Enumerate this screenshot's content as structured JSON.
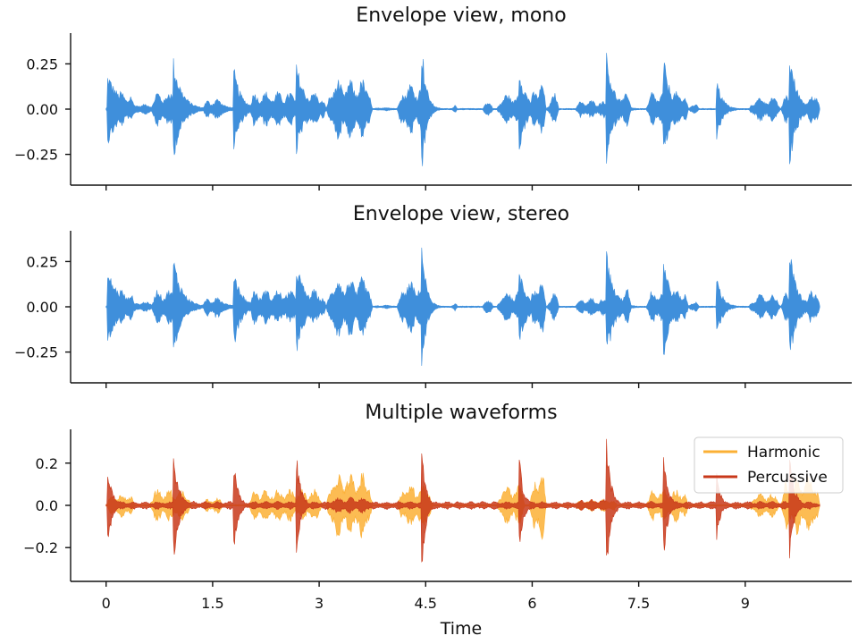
{
  "figure": {
    "xlabel": "Time",
    "x_tick_labels": [
      "0",
      "1.5",
      "3",
      "4.5",
      "6",
      "7.5",
      "9"
    ]
  },
  "chart_data": [
    {
      "type": "area",
      "title": "Envelope view, mono",
      "xlim": [
        -0.5,
        10.5
      ],
      "ylim": [
        -0.42,
        0.42
      ],
      "y_ticks": [
        0.25,
        0.0,
        -0.25
      ],
      "y_tick_labels": [
        "0.25",
        "0.00",
        "−0.25"
      ],
      "grid": false,
      "series": [
        {
          "color": "#3f8fdb",
          "events": [
            {
              "t": 0.03,
              "a": 0.2,
              "d": 0.18
            },
            {
              "t": 0.95,
              "a": 0.29,
              "d": 0.12
            },
            {
              "t": 1.55,
              "a": 0.06,
              "d": 0.12
            },
            {
              "t": 1.8,
              "a": 0.24,
              "d": 0.1
            },
            {
              "t": 2.68,
              "a": 0.27,
              "d": 0.12
            },
            {
              "t": 4.45,
              "a": 0.38,
              "d": 0.06
            },
            {
              "t": 5.82,
              "a": 0.24,
              "d": 0.1
            },
            {
              "t": 7.05,
              "a": 0.32,
              "d": 0.1
            },
            {
              "t": 7.85,
              "a": 0.3,
              "d": 0.1
            },
            {
              "t": 8.6,
              "a": 0.18,
              "d": 0.08
            },
            {
              "t": 9.63,
              "a": 0.32,
              "d": 0.1
            }
          ],
          "sections": [
            {
              "t0": 0.0,
              "t1": 0.4,
              "a": 0.1
            },
            {
              "t0": 0.4,
              "t1": 0.7,
              "a": 0.03
            },
            {
              "t0": 0.62,
              "t1": 1.2,
              "a": 0.1
            },
            {
              "t0": 1.35,
              "t1": 1.65,
              "a": 0.06
            },
            {
              "t0": 1.9,
              "t1": 2.1,
              "a": 0.04
            },
            {
              "t0": 2.0,
              "t1": 3.05,
              "a": 0.1
            },
            {
              "t0": 2.8,
              "t1": 3.1,
              "a": 0.08
            },
            {
              "t0": 3.1,
              "t1": 3.75,
              "a": 0.17
            },
            {
              "t0": 3.75,
              "t1": 4.1,
              "a": 0.01
            },
            {
              "t0": 4.1,
              "t1": 4.6,
              "a": 0.15
            },
            {
              "t0": 4.85,
              "t1": 4.95,
              "a": 0.05
            },
            {
              "t0": 5.3,
              "t1": 5.45,
              "a": 0.07
            },
            {
              "t0": 5.5,
              "t1": 5.9,
              "a": 0.09
            },
            {
              "t0": 5.96,
              "t1": 6.2,
              "a": 0.16
            },
            {
              "t0": 6.2,
              "t1": 6.38,
              "a": 0.09
            },
            {
              "t0": 6.6,
              "t1": 7.2,
              "a": 0.05
            },
            {
              "t0": 7.15,
              "t1": 7.4,
              "a": 0.1
            },
            {
              "t0": 7.6,
              "t1": 8.2,
              "a": 0.1
            },
            {
              "t0": 8.2,
              "t1": 8.35,
              "a": 0.05
            },
            {
              "t0": 9.05,
              "t1": 9.5,
              "a": 0.07
            },
            {
              "t0": 9.5,
              "t1": 9.8,
              "a": 0.1
            },
            {
              "t0": 9.85,
              "t1": 10.05,
              "a": 0.12
            }
          ]
        }
      ]
    },
    {
      "type": "area",
      "title": "Envelope view, stereo",
      "xlim": [
        -0.5,
        10.5
      ],
      "ylim": [
        -0.42,
        0.42
      ],
      "y_ticks": [
        0.25,
        0.0,
        -0.25
      ],
      "y_tick_labels": [
        "0.25",
        "0.00",
        "−0.25"
      ],
      "grid": false,
      "series": [
        {
          "color": "#3f8fdb",
          "events": [
            {
              "t": 0.03,
              "a": 0.2,
              "d": 0.18
            },
            {
              "t": 0.95,
              "a": 0.29,
              "d": 0.12
            },
            {
              "t": 1.55,
              "a": 0.06,
              "d": 0.12
            },
            {
              "t": 1.8,
              "a": 0.24,
              "d": 0.1
            },
            {
              "t": 2.68,
              "a": 0.27,
              "d": 0.12
            },
            {
              "t": 4.45,
              "a": 0.38,
              "d": 0.06
            },
            {
              "t": 5.82,
              "a": 0.24,
              "d": 0.1
            },
            {
              "t": 7.05,
              "a": 0.32,
              "d": 0.1
            },
            {
              "t": 7.85,
              "a": 0.3,
              "d": 0.1
            },
            {
              "t": 8.6,
              "a": 0.18,
              "d": 0.08
            },
            {
              "t": 9.63,
              "a": 0.32,
              "d": 0.1
            }
          ],
          "sections": [
            {
              "t0": 0.0,
              "t1": 0.4,
              "a": 0.1
            },
            {
              "t0": 0.4,
              "t1": 0.7,
              "a": 0.03
            },
            {
              "t0": 0.62,
              "t1": 1.2,
              "a": 0.1
            },
            {
              "t0": 1.35,
              "t1": 1.65,
              "a": 0.06
            },
            {
              "t0": 1.9,
              "t1": 2.1,
              "a": 0.04
            },
            {
              "t0": 2.0,
              "t1": 3.05,
              "a": 0.1
            },
            {
              "t0": 2.8,
              "t1": 3.1,
              "a": 0.08
            },
            {
              "t0": 3.1,
              "t1": 3.75,
              "a": 0.17
            },
            {
              "t0": 3.75,
              "t1": 4.1,
              "a": 0.01
            },
            {
              "t0": 4.1,
              "t1": 4.6,
              "a": 0.15
            },
            {
              "t0": 4.85,
              "t1": 4.95,
              "a": 0.05
            },
            {
              "t0": 5.3,
              "t1": 5.45,
              "a": 0.07
            },
            {
              "t0": 5.5,
              "t1": 5.9,
              "a": 0.09
            },
            {
              "t0": 5.96,
              "t1": 6.2,
              "a": 0.16
            },
            {
              "t0": 6.2,
              "t1": 6.38,
              "a": 0.09
            },
            {
              "t0": 6.6,
              "t1": 7.2,
              "a": 0.05
            },
            {
              "t0": 7.15,
              "t1": 7.4,
              "a": 0.1
            },
            {
              "t0": 7.6,
              "t1": 8.2,
              "a": 0.1
            },
            {
              "t0": 8.2,
              "t1": 8.35,
              "a": 0.05
            },
            {
              "t0": 9.05,
              "t1": 9.5,
              "a": 0.07
            },
            {
              "t0": 9.5,
              "t1": 9.8,
              "a": 0.1
            },
            {
              "t0": 9.85,
              "t1": 10.05,
              "a": 0.12
            }
          ]
        }
      ]
    },
    {
      "type": "area",
      "title": "Multiple waveforms",
      "xlim": [
        -0.5,
        10.5
      ],
      "ylim": [
        -0.36,
        0.36
      ],
      "y_ticks": [
        0.2,
        0.0,
        -0.2
      ],
      "y_tick_labels": [
        "0.2",
        "0.0",
        "−0.2"
      ],
      "grid": false,
      "legend": "top-right",
      "series": [
        {
          "name": "Harmonic",
          "color": "#fbb035",
          "events": [],
          "sections": [
            {
              "t0": 0.0,
              "t1": 0.4,
              "a": 0.06
            },
            {
              "t0": 0.6,
              "t1": 1.2,
              "a": 0.08
            },
            {
              "t0": 1.35,
              "t1": 1.65,
              "a": 0.04
            },
            {
              "t0": 2.0,
              "t1": 3.05,
              "a": 0.08
            },
            {
              "t0": 3.1,
              "t1": 3.75,
              "a": 0.16
            },
            {
              "t0": 4.1,
              "t1": 4.6,
              "a": 0.11
            },
            {
              "t0": 5.5,
              "t1": 5.9,
              "a": 0.1
            },
            {
              "t0": 5.96,
              "t1": 6.2,
              "a": 0.18
            },
            {
              "t0": 6.6,
              "t1": 7.2,
              "a": 0.03
            },
            {
              "t0": 7.6,
              "t1": 8.2,
              "a": 0.08
            },
            {
              "t0": 9.05,
              "t1": 9.5,
              "a": 0.06
            },
            {
              "t0": 9.5,
              "t1": 10.05,
              "a": 0.14
            }
          ]
        },
        {
          "name": "Percussive",
          "color": "#c8381a",
          "events": [
            {
              "t": 0.03,
              "a": 0.19,
              "d": 0.06
            },
            {
              "t": 0.95,
              "a": 0.29,
              "d": 0.07
            },
            {
              "t": 1.8,
              "a": 0.22,
              "d": 0.06
            },
            {
              "t": 2.68,
              "a": 0.26,
              "d": 0.06
            },
            {
              "t": 4.45,
              "a": 0.32,
              "d": 0.05
            },
            {
              "t": 5.82,
              "a": 0.23,
              "d": 0.06
            },
            {
              "t": 7.05,
              "a": 0.33,
              "d": 0.06
            },
            {
              "t": 7.85,
              "a": 0.28,
              "d": 0.06
            },
            {
              "t": 8.6,
              "a": 0.18,
              "d": 0.05
            },
            {
              "t": 9.63,
              "a": 0.28,
              "d": 0.06
            }
          ],
          "sections": [
            {
              "t0": 0.0,
              "t1": 10.05,
              "a": 0.02
            },
            {
              "t0": 3.1,
              "t1": 3.75,
              "a": 0.04
            },
            {
              "t0": 6.6,
              "t1": 7.2,
              "a": 0.03
            }
          ]
        }
      ]
    }
  ]
}
